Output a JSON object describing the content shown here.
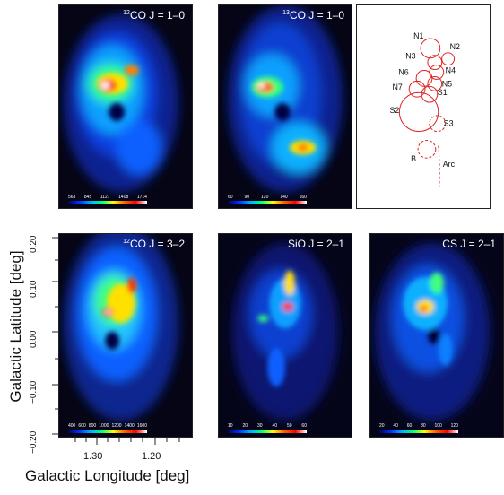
{
  "panels": [
    {
      "id": "12co10",
      "title_sup": "12",
      "title_mol": "CO",
      "title_rest": "J = 1–0",
      "cbar": [
        "563",
        "845",
        "1127",
        "1408",
        "1714"
      ]
    },
    {
      "id": "13co10",
      "title_sup": "13",
      "title_mol": "CO",
      "title_rest": "J = 1–0",
      "cbar": [
        "60",
        "90",
        "120",
        "140",
        "160"
      ]
    },
    {
      "id": "12co32",
      "title_sup": "12",
      "title_mol": "CO",
      "title_rest": "J = 3–2",
      "cbar": [
        "400",
        "600",
        "800",
        "1000",
        "1200",
        "1400",
        "1600"
      ]
    },
    {
      "id": "sio21",
      "title_sup": "",
      "title_mol": "SiO",
      "title_rest": "J = 2–1",
      "cbar": [
        "10",
        "20",
        "30",
        "40",
        "50",
        "60"
      ]
    },
    {
      "id": "cs21",
      "title_sup": "",
      "title_mol": "CS",
      "title_rest": "J = 2–1",
      "cbar": [
        "20",
        "40",
        "60",
        "80",
        "100",
        "120"
      ]
    }
  ],
  "regions": {
    "N1": "N1",
    "N2": "N2",
    "N3": "N3",
    "N4": "N4",
    "N5": "N5",
    "N6": "N6",
    "N7": "N7",
    "S1": "S1",
    "S2": "S2",
    "S3": "S3",
    "B": "B",
    "Arc": "Arc"
  },
  "axes": {
    "ylabel": "Galactic Latitude [deg]",
    "xlabel": "Galactic Longitude [deg]",
    "yticks": [
      "0.20",
      "0.10",
      "0.00",
      "−0.10",
      "−0.20"
    ],
    "xticks": [
      "1.30",
      "1.20"
    ]
  }
}
